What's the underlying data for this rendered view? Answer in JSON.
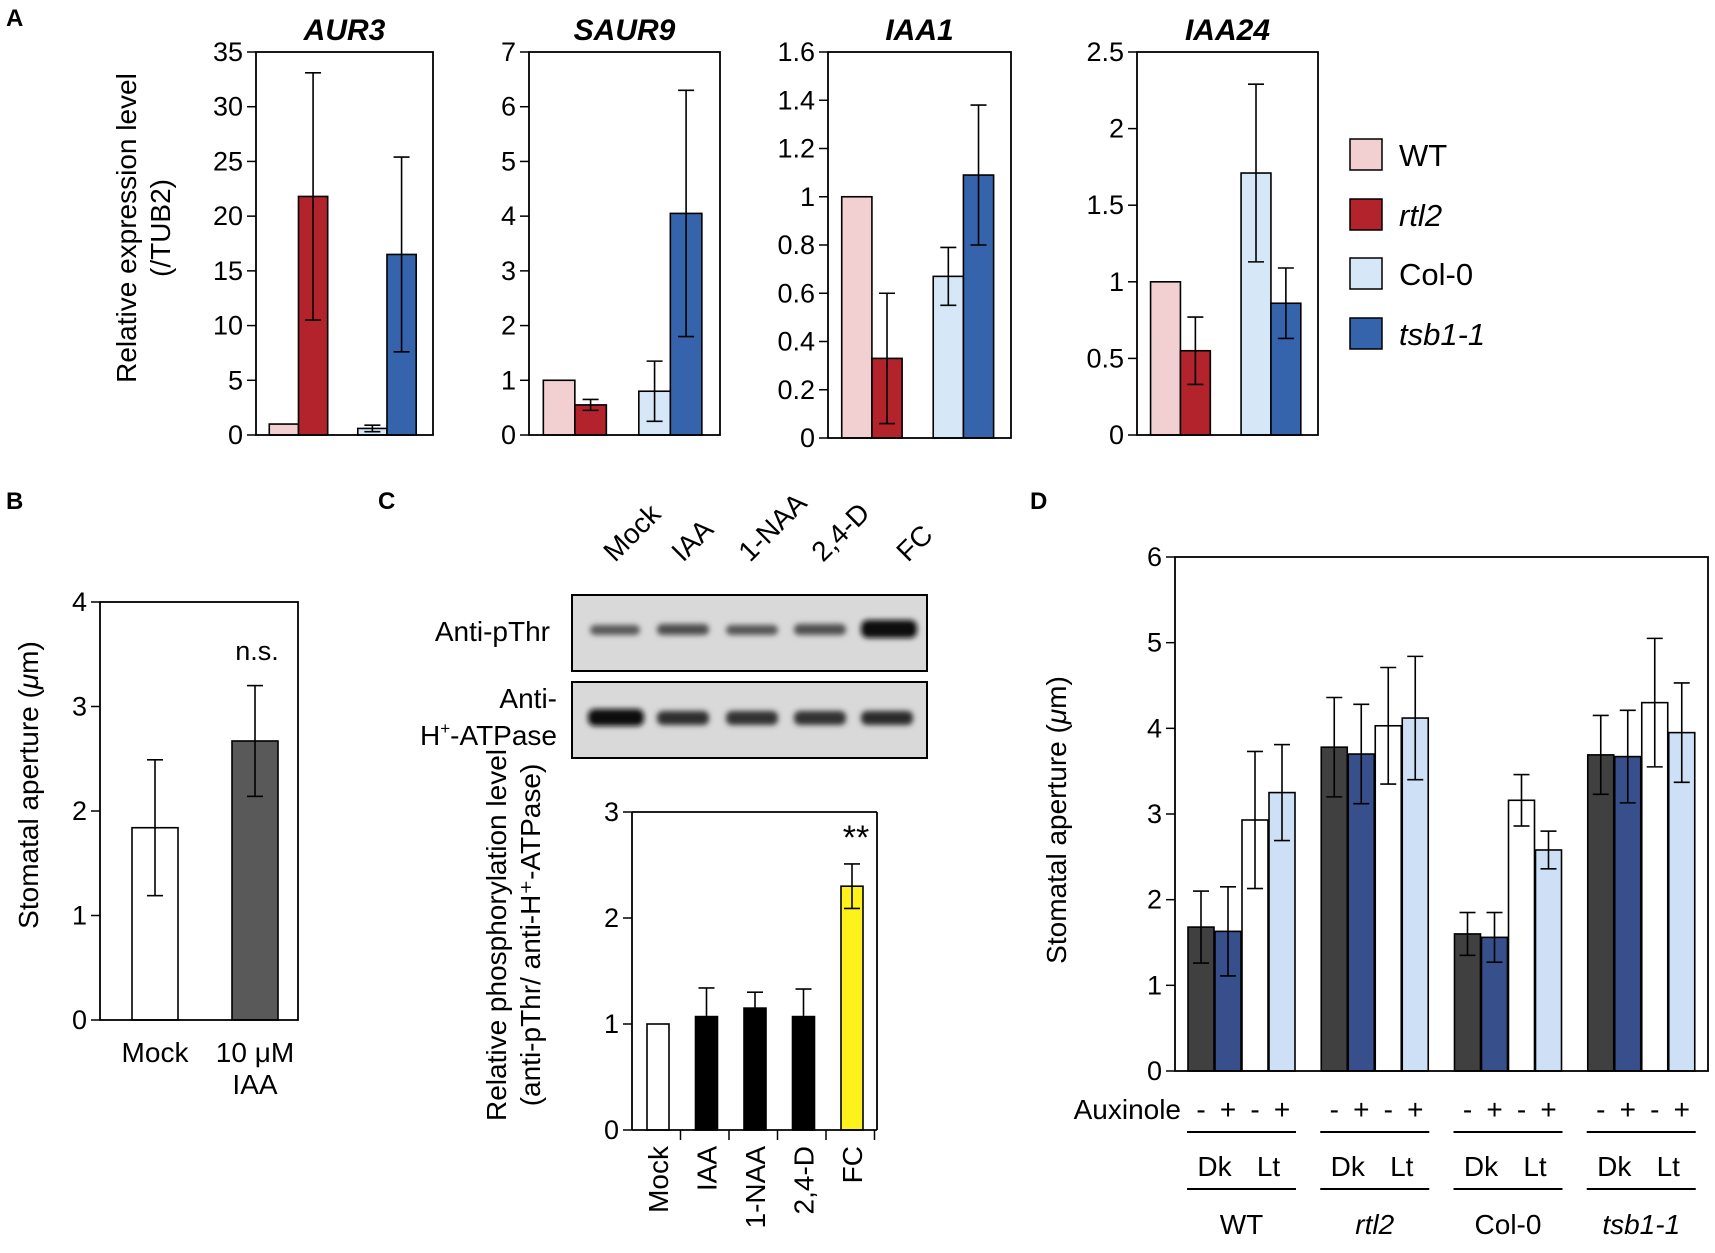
{
  "figure": {
    "colors": {
      "wt": "#f2cfd0",
      "rtl2": "#b2232b",
      "col0": "#d6e8f8",
      "tsb": "#3564ac",
      "white": "#ffffff",
      "dark_gray": "#595959",
      "black": "#000000",
      "yellow": "#fff21c",
      "dk_gray": "#404040",
      "dk_blue": "#374f8a",
      "lt_blue": "#cde0f6"
    }
  },
  "panel_a": {
    "letter": "A",
    "ylabel_line1": "Relative expression level",
    "ylabel_line2": "(/TUB2)",
    "legend": [
      {
        "label": "WT",
        "color": "#f2cfd0",
        "italic": false
      },
      {
        "label": "rtl2",
        "color": "#b2232b",
        "italic": true
      },
      {
        "label": "Col-0",
        "color": "#d6e8f8",
        "italic": false
      },
      {
        "label": "tsb1-1",
        "color": "#3564ac",
        "italic": true
      }
    ]
  },
  "panel_b": {
    "letter": "B"
  },
  "panel_c": {
    "letter": "C",
    "blot_lanes": [
      "Mock",
      "IAA",
      "1-NAA",
      "2,4-D",
      "FC"
    ],
    "blot_row1_label": "Anti-pThr",
    "blot_row2_label_line1": "Anti-",
    "blot_row2_label_line2_pre": "H",
    "blot_row2_label_line2_sup": "+",
    "blot_row2_label_line2_post": "-ATPase"
  },
  "panel_d": {
    "letter": "D",
    "auxinole_label": "Auxinole",
    "signs": [
      "-",
      "+",
      "-",
      "+"
    ],
    "conditions": [
      "Dk",
      "Lt"
    ],
    "genotypes": [
      {
        "label": "WT",
        "italic": false
      },
      {
        "label": "rtl2",
        "italic": true
      },
      {
        "label": "Col-0",
        "italic": false
      },
      {
        "label": "tsb1-1",
        "italic": true
      }
    ]
  },
  "chart_data": [
    {
      "id": "A1",
      "type": "bar",
      "title": "AUR3",
      "ylim": [
        0,
        35
      ],
      "yticks": [
        0,
        5,
        10,
        15,
        20,
        25,
        30,
        35
      ],
      "ylabel": "Relative expression level (/TUB2)",
      "series": [
        {
          "name": "WT",
          "values": [
            1.0
          ],
          "error": [
            0.0
          ]
        },
        {
          "name": "rtl2",
          "values": [
            21.8
          ],
          "error": [
            11.3
          ]
        },
        {
          "name": "Col-0",
          "values": [
            0.6
          ],
          "error": [
            0.3
          ]
        },
        {
          "name": "tsb1-1",
          "values": [
            16.5
          ],
          "error": [
            8.9
          ]
        }
      ]
    },
    {
      "id": "A2",
      "type": "bar",
      "title": "SAUR9",
      "ylim": [
        0,
        7
      ],
      "yticks": [
        0,
        1,
        2,
        3,
        4,
        5,
        6,
        7
      ],
      "series": [
        {
          "name": "WT",
          "values": [
            1.0
          ],
          "error": [
            0.0
          ]
        },
        {
          "name": "rtl2",
          "values": [
            0.55
          ],
          "error": [
            0.1
          ]
        },
        {
          "name": "Col-0",
          "values": [
            0.8
          ],
          "error": [
            0.55
          ]
        },
        {
          "name": "tsb1-1",
          "values": [
            4.05
          ],
          "error": [
            2.25
          ]
        }
      ]
    },
    {
      "id": "A3",
      "type": "bar",
      "title": "IAA1",
      "ylim": [
        0,
        1.6
      ],
      "yticks": [
        0,
        0.2,
        0.4,
        0.6,
        0.8,
        1,
        1.2,
        1.4,
        1.6
      ],
      "series": [
        {
          "name": "WT",
          "values": [
            1.0
          ],
          "error": [
            0.0
          ]
        },
        {
          "name": "rtl2",
          "values": [
            0.33
          ],
          "error": [
            0.27
          ]
        },
        {
          "name": "Col-0",
          "values": [
            0.67
          ],
          "error": [
            0.12
          ]
        },
        {
          "name": "tsb1-1",
          "values": [
            1.09
          ],
          "error": [
            0.29
          ]
        }
      ]
    },
    {
      "id": "A4",
      "type": "bar",
      "title": "IAA24",
      "ylim": [
        0,
        2.5
      ],
      "yticks": [
        0,
        0.5,
        1,
        1.5,
        2,
        2.5
      ],
      "series": [
        {
          "name": "WT",
          "values": [
            1.0
          ],
          "error": [
            0.0
          ]
        },
        {
          "name": "rtl2",
          "values": [
            0.55
          ],
          "error": [
            0.22
          ]
        },
        {
          "name": "Col-0",
          "values": [
            1.71
          ],
          "error": [
            0.58
          ]
        },
        {
          "name": "tsb1-1",
          "values": [
            0.86
          ],
          "error": [
            0.23
          ]
        }
      ]
    },
    {
      "id": "B",
      "type": "bar",
      "title": "",
      "ylabel_pre": "Stomatal aperture (",
      "ylabel_mu": "μ",
      "ylabel_post": "m)",
      "ylim": [
        0,
        4
      ],
      "yticks": [
        0,
        1,
        2,
        3,
        4
      ],
      "categories": [
        "Mock",
        "10 μM IAA"
      ],
      "category_lines": [
        [
          "Mock"
        ],
        [
          "10 μM",
          "IAA"
        ]
      ],
      "values": [
        1.84,
        2.67
      ],
      "error": [
        0.65,
        0.53
      ],
      "annotation": "n.s."
    },
    {
      "id": "C",
      "type": "bar",
      "title": "",
      "ylabel_line1": "Relative phosphorylation level",
      "ylabel_line2": "(anti-pThr/ anti-H⁺-ATPase)",
      "ylim": [
        0,
        3
      ],
      "yticks": [
        0,
        1,
        2,
        3
      ],
      "categories": [
        "Mock",
        "IAA",
        "1-NAA",
        "2,4-D",
        "FC"
      ],
      "values": [
        1.0,
        1.07,
        1.15,
        1.07,
        2.3
      ],
      "error": [
        0.0,
        0.27,
        0.15,
        0.26,
        0.21
      ],
      "annotation": "**"
    },
    {
      "id": "D",
      "type": "bar",
      "title": "",
      "ylabel_pre": "Stomatal aperture (",
      "ylabel_mu": "μ",
      "ylabel_post": "m)",
      "ylim": [
        0,
        6
      ],
      "yticks": [
        0,
        1,
        2,
        3,
        4,
        5,
        6
      ],
      "categories": [
        "WT",
        "rtl2",
        "Col-0",
        "tsb1-1"
      ],
      "series": [
        {
          "name": "Dk -",
          "values": [
            1.68,
            3.78,
            1.6,
            3.69
          ],
          "error": [
            0.42,
            0.58,
            0.25,
            0.46
          ]
        },
        {
          "name": "Dk +",
          "values": [
            1.63,
            3.7,
            1.56,
            3.67
          ],
          "error": [
            0.52,
            0.58,
            0.29,
            0.54
          ]
        },
        {
          "name": "Lt -",
          "values": [
            2.93,
            4.03,
            3.16,
            4.3
          ],
          "error": [
            0.8,
            0.68,
            0.3,
            0.75
          ]
        },
        {
          "name": "Lt +",
          "values": [
            3.25,
            4.12,
            2.58,
            3.95
          ],
          "error": [
            0.56,
            0.72,
            0.22,
            0.58
          ]
        }
      ]
    }
  ]
}
